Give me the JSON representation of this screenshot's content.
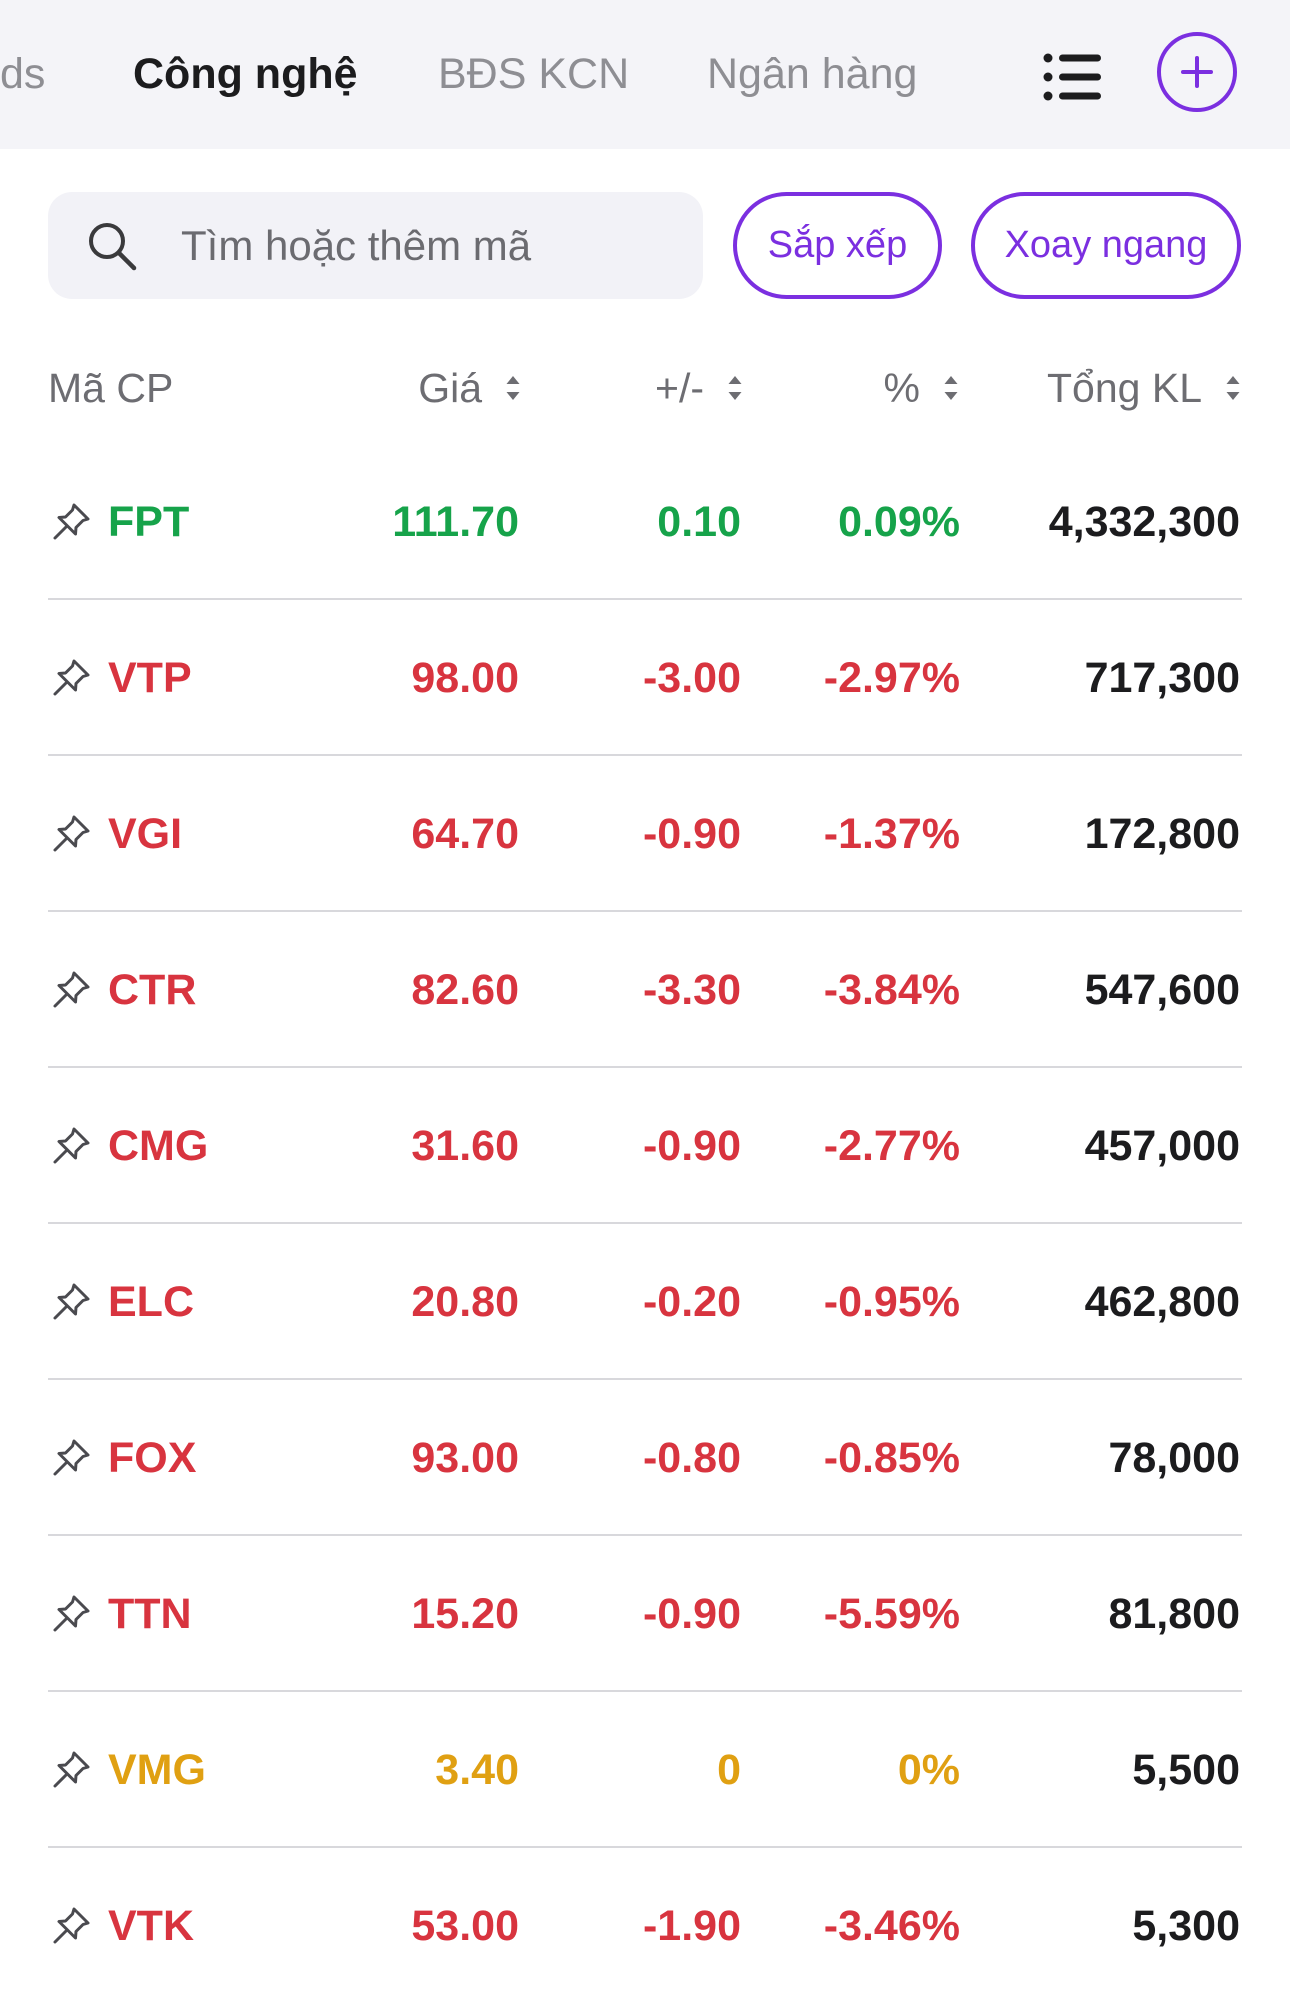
{
  "tabs": [
    {
      "label": "ds",
      "active": false
    },
    {
      "label": "Công nghệ",
      "active": true
    },
    {
      "label": "BĐS KCN",
      "active": false
    },
    {
      "label": "Ngân hàng",
      "active": false
    }
  ],
  "toolbar": {
    "list_icon": "list-icon",
    "add_icon": "plus-circle-icon"
  },
  "search": {
    "placeholder": "Tìm hoặc thêm mã",
    "value": ""
  },
  "actions": {
    "sort_label": "Sắp xếp",
    "rotate_label": "Xoay ngang"
  },
  "columns": {
    "symbol": "Mã CP",
    "price": "Giá",
    "change": "+/-",
    "percent": "%",
    "volume": "Tổng KL"
  },
  "colors": {
    "accent": "#7b2fe0",
    "up": "#16a34a",
    "down": "#d8343f",
    "reference": "#e0a012"
  },
  "stocks": [
    {
      "symbol": "FPT",
      "price": "111.70",
      "change": "0.10",
      "percent": "0.09%",
      "volume": "4,332,300",
      "trend": "up"
    },
    {
      "symbol": "VTP",
      "price": "98.00",
      "change": "-3.00",
      "percent": "-2.97%",
      "volume": "717,300",
      "trend": "down"
    },
    {
      "symbol": "VGI",
      "price": "64.70",
      "change": "-0.90",
      "percent": "-1.37%",
      "volume": "172,800",
      "trend": "down"
    },
    {
      "symbol": "CTR",
      "price": "82.60",
      "change": "-3.30",
      "percent": "-3.84%",
      "volume": "547,600",
      "trend": "down"
    },
    {
      "symbol": "CMG",
      "price": "31.60",
      "change": "-0.90",
      "percent": "-2.77%",
      "volume": "457,000",
      "trend": "down"
    },
    {
      "symbol": "ELC",
      "price": "20.80",
      "change": "-0.20",
      "percent": "-0.95%",
      "volume": "462,800",
      "trend": "down"
    },
    {
      "symbol": "FOX",
      "price": "93.00",
      "change": "-0.80",
      "percent": "-0.85%",
      "volume": "78,000",
      "trend": "down"
    },
    {
      "symbol": "TTN",
      "price": "15.20",
      "change": "-0.90",
      "percent": "-5.59%",
      "volume": "81,800",
      "trend": "down"
    },
    {
      "symbol": "VMG",
      "price": "3.40",
      "change": "0",
      "percent": "0%",
      "volume": "5,500",
      "trend": "flat"
    },
    {
      "symbol": "VTK",
      "price": "53.00",
      "change": "-1.90",
      "percent": "-3.46%",
      "volume": "5,300",
      "trend": "down"
    }
  ]
}
